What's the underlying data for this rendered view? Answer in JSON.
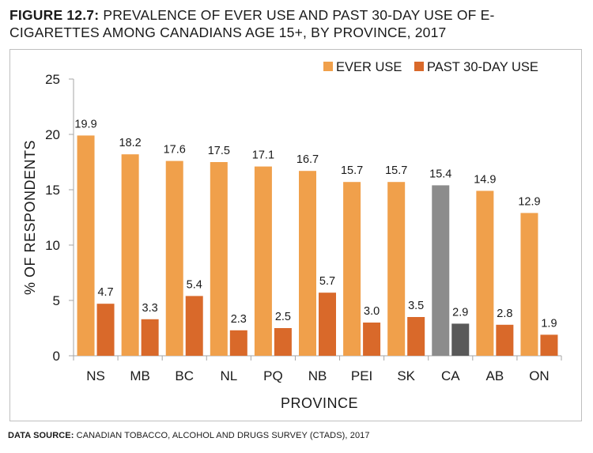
{
  "title": {
    "bold": "FIGURE 12.7:",
    "text": "PREVALENCE OF EVER USE AND PAST 30-DAY USE OF E-CIGARETTES AMONG CANADIANS AGE 15+, BY PROVINCE, 2017"
  },
  "source": {
    "bold": "DATA SOURCE:",
    "text": "CANADIAN TOBACCO, ALCOHOL AND DRUGS SURVEY (CTADS), 2017"
  },
  "chart_data": {
    "type": "bar",
    "categories": [
      "NS",
      "MB",
      "BC",
      "NL",
      "PQ",
      "NB",
      "PEI",
      "SK",
      "CA",
      "AB",
      "ON"
    ],
    "series": [
      {
        "name": "EVER USE",
        "values": [
          19.9,
          18.2,
          17.6,
          17.5,
          17.1,
          16.7,
          15.7,
          15.7,
          15.4,
          14.9,
          12.9
        ]
      },
      {
        "name": "PAST 30-DAY USE",
        "values": [
          4.7,
          3.3,
          5.4,
          2.3,
          2.5,
          5.7,
          3.0,
          3.5,
          2.9,
          2.8,
          1.9
        ]
      }
    ],
    "data_labels": [
      [
        "19.9",
        "18.2",
        "17.6",
        "17.5",
        "17.1",
        "16.7",
        "15.7",
        "15.7",
        "15.4",
        "14.9",
        "12.9"
      ],
      [
        "4.7",
        "3.3",
        "5.4",
        "2.3",
        "2.5",
        "5.7",
        "3.0",
        "3.5",
        "2.9",
        "2.8",
        "1.9"
      ]
    ],
    "xlabel": "PROVINCE",
    "ylabel": "% OF RESPONDENTS",
    "ylim": [
      0,
      25
    ],
    "yticks": [
      0,
      5,
      10,
      15,
      20,
      25
    ],
    "ytick_labels": [
      "0",
      "5",
      "10",
      "15",
      "20",
      "25"
    ],
    "grid": false,
    "legend_position": "top-right",
    "colors": {
      "ever": "#F0A04B",
      "past": "#D9692A",
      "highlight_category": "CA",
      "highlight_ever": "#8C8C8C",
      "highlight_past": "#595959"
    }
  }
}
